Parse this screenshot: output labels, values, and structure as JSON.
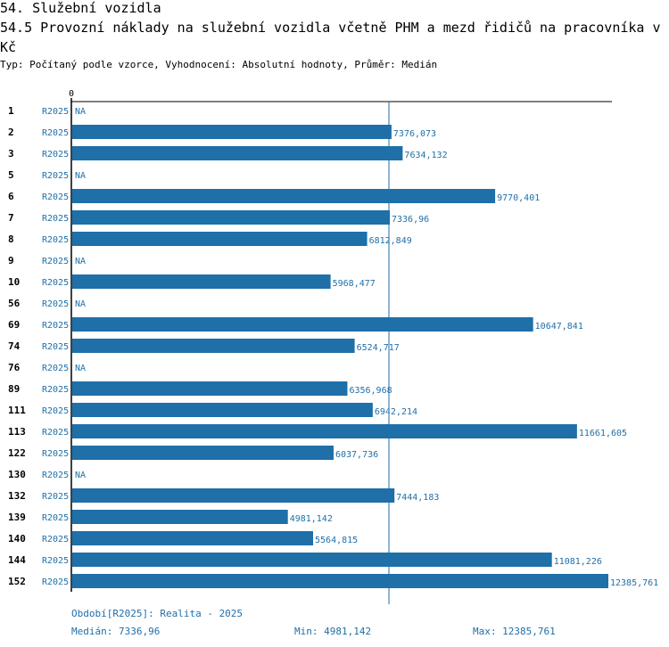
{
  "header": {
    "title": "54. Služební vozidla",
    "subtitle": "54.5 Provozní náklady na služební vozidla včetně PHM a mezd řidičů na pracovníka v Kč",
    "info": "Typ: Počítaný podle vzorce, Vyhodnocení: Absolutní hodnoty, Průměr: Medián"
  },
  "colors": {
    "bar": "#1f6fa8",
    "text_blue": "#1f6fa8",
    "axis": "#000000"
  },
  "chart_data": {
    "type": "bar",
    "orientation": "horizontal",
    "title": "54.5 Provozní náklady na služební vozidla včetně PHM a mezd řidičů na pracovníka v Kč",
    "axis_zero_label": "0",
    "median_value": 7336.96,
    "xlim": [
      0,
      12385.761
    ],
    "na_label": "NA",
    "categories": [
      "1",
      "2",
      "3",
      "5",
      "6",
      "7",
      "8",
      "9",
      "10",
      "56",
      "69",
      "74",
      "76",
      "89",
      "111",
      "113",
      "122",
      "130",
      "132",
      "139",
      "140",
      "144",
      "152"
    ],
    "series_label": "R2025",
    "values": [
      null,
      7376.073,
      7634.132,
      null,
      9770.401,
      7336.96,
      6812.849,
      null,
      5968.477,
      null,
      10647.841,
      6524.717,
      null,
      6356.968,
      6942.214,
      11661.605,
      6037.736,
      null,
      7444.183,
      4981.142,
      5564.815,
      11081.226,
      12385.761
    ],
    "value_labels": [
      "NA",
      "7376,073",
      "7634,132",
      "NA",
      "9770,401",
      "7336,96",
      "6812,849",
      "NA",
      "5968,477",
      "NA",
      "10647,841",
      "6524,717",
      "NA",
      "6356,968",
      "6942,214",
      "11661,605",
      "6037,736",
      "NA",
      "7444,183",
      "4981,142",
      "5564,815",
      "11081,226",
      "12385,761"
    ]
  },
  "footer": {
    "period": "Období[R2025]: Realita - 2025",
    "median": "Medián: 7336,96",
    "min": "Min: 4981,142",
    "max": "Max: 12385,761"
  }
}
